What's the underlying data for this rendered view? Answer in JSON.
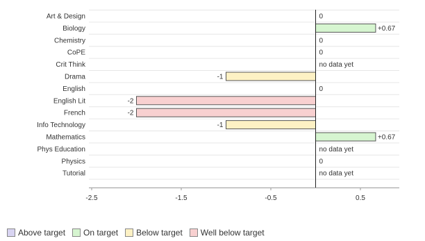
{
  "chart_data": {
    "type": "bar",
    "orientation": "horizontal",
    "categories": [
      "Art & Design",
      "Biology",
      "Chemistry",
      "CoPE",
      "Crit Think",
      "Drama",
      "English",
      "English Lit",
      "French",
      "Info Technology",
      "Mathematics",
      "Phys Education",
      "Physics",
      "Tutorial"
    ],
    "values": [
      0,
      0.67,
      0,
      0,
      null,
      -1,
      0,
      -2,
      -2,
      -1,
      0.67,
      null,
      0,
      null
    ],
    "data_labels": [
      "0",
      "+0.67",
      "0",
      "0",
      "no data yet",
      "-1",
      "0",
      "-2",
      "-2",
      "-1",
      "+0.67",
      "no data yet",
      "0",
      "no data yet"
    ],
    "status": [
      "on",
      "on",
      "on",
      "on",
      "none",
      "below",
      "on",
      "well_below",
      "well_below",
      "below",
      "on",
      "none",
      "on",
      "none"
    ],
    "xlim": [
      -2.5,
      1
    ],
    "xticks": [
      -2.5,
      -1.5,
      -0.5,
      0.5
    ],
    "xtick_labels": [
      "-2.5",
      "-1.5",
      "-0.5",
      "0.5"
    ],
    "grid": true,
    "legend_position": "bottom-left",
    "legend": [
      {
        "key": "above",
        "label": "Above target"
      },
      {
        "key": "on",
        "label": "On target"
      },
      {
        "key": "below",
        "label": "Below target"
      },
      {
        "key": "well_below",
        "label": "Well below target"
      }
    ]
  },
  "colors": {
    "above": "#d8d4f2",
    "on": "#d6f5d0",
    "below": "#fdf1c4",
    "well_below": "#f8d0d0",
    "swatch_border": "#888888",
    "grid": "#e6e6e6",
    "axis": "#222222"
  }
}
